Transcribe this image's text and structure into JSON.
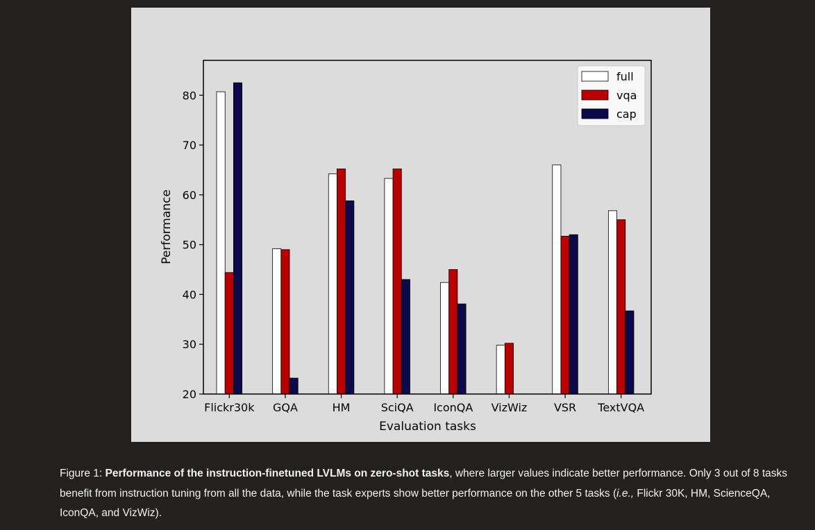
{
  "chart_data": {
    "type": "bar",
    "xlabel": "Evaluation tasks",
    "ylabel": "Performance",
    "ylim": [
      20,
      87
    ],
    "yticks": [
      20,
      30,
      40,
      50,
      60,
      70,
      80
    ],
    "categories": [
      "Flickr30k",
      "GQA",
      "HM",
      "SciQA",
      "IconQA",
      "VizWiz",
      "VSR",
      "TextVQA"
    ],
    "series": [
      {
        "name": "full",
        "color": "#ffffff",
        "values": [
          80.7,
          49.2,
          64.2,
          63.3,
          42.4,
          29.8,
          66.0,
          56.8
        ]
      },
      {
        "name": "vqa",
        "color": "#bb0000",
        "values": [
          44.4,
          49.0,
          65.2,
          65.2,
          45.0,
          30.2,
          51.7,
          55.0
        ]
      },
      {
        "name": "cap",
        "color": "#0a0a4a",
        "values": [
          82.5,
          23.2,
          58.8,
          43.0,
          38.1,
          null,
          52.0,
          36.7
        ]
      }
    ],
    "legend_position": "top-right",
    "grid": false
  },
  "caption": {
    "prefix": "Figure 1: ",
    "bold": "Performance of the instruction-finetuned LVLMs on zero-shot tasks",
    "text1": ", where larger values indicate better performance. Only 3 out of 8 tasks benefit from instruction tuning from all the data, while the task experts show better performance on the other 5 tasks (",
    "italic": "i.e.,",
    "text2": " Flickr 30K, HM, ScienceQA, IconQA, and VizWiz)."
  }
}
